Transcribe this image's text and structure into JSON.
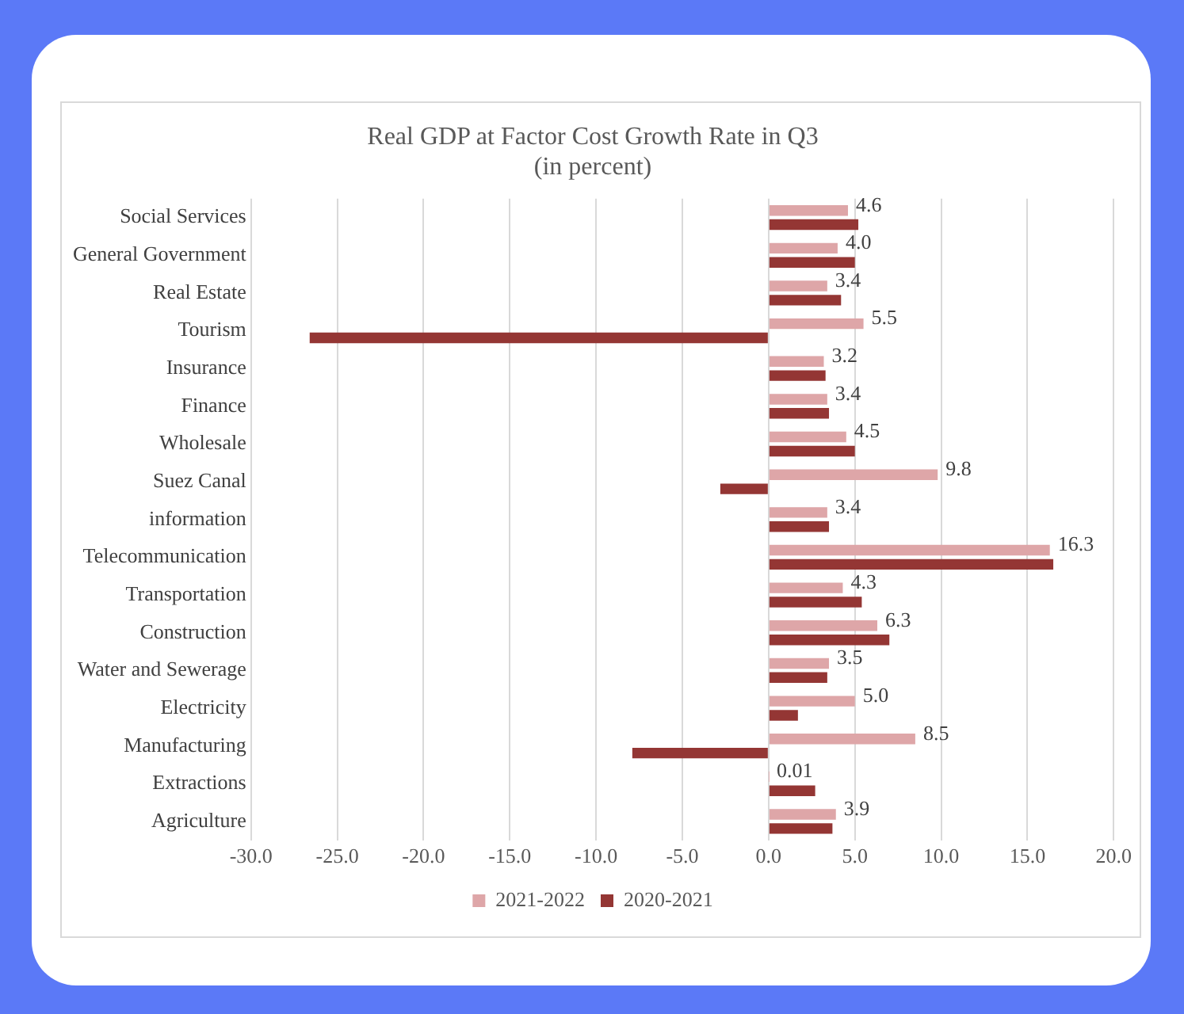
{
  "chart_data": {
    "type": "bar",
    "orientation": "horizontal",
    "title": "Real GDP at Factor Cost Growth Rate in Q3",
    "subtitle": "(in percent)",
    "categories": [
      "Social Services",
      "General Government",
      "Real Estate",
      "Tourism",
      "Insurance",
      "Finance",
      "Wholesale",
      "Suez Canal",
      "information",
      "Telecommunication",
      "Transportation",
      "Construction",
      "Water and Sewerage",
      "Electricity",
      "Manufacturing",
      "Extractions",
      "Agriculture"
    ],
    "series": [
      {
        "name": "2021-2022",
        "color": "#dea6a8",
        "values": [
          4.6,
          4.0,
          3.4,
          5.5,
          3.2,
          3.4,
          4.5,
          9.8,
          3.4,
          16.3,
          4.3,
          6.3,
          3.5,
          5.0,
          8.5,
          0.01,
          3.9
        ],
        "value_labels": [
          "4.6",
          "4.0",
          "3.4",
          "5.5",
          "3.2",
          "3.4",
          "4.5",
          "9.8",
          "3.4",
          "16.3",
          "4.3",
          "6.3",
          "3.5",
          "5.0",
          "8.5",
          "0.01",
          "3.9"
        ]
      },
      {
        "name": "2020-2021",
        "color": "#943634",
        "values": [
          5.2,
          5.0,
          4.2,
          -26.6,
          3.3,
          3.5,
          5.0,
          -2.8,
          3.5,
          16.5,
          5.4,
          7.0,
          3.4,
          1.7,
          -7.9,
          2.7,
          3.7
        ]
      }
    ],
    "xlim": [
      -30,
      20
    ],
    "xticks": [
      {
        "value": -30,
        "label": "-30.0"
      },
      {
        "value": -25,
        "label": "-25.0"
      },
      {
        "value": -20,
        "label": "-20.0"
      },
      {
        "value": -15,
        "label": "-15.0"
      },
      {
        "value": -10,
        "label": "-10.0"
      },
      {
        "value": -5,
        "label": "-5.0"
      },
      {
        "value": 0,
        "label": "0.0"
      },
      {
        "value": 5,
        "label": "5.0"
      },
      {
        "value": 10,
        "label": "10.0"
      },
      {
        "value": 15,
        "label": "15.0"
      },
      {
        "value": 20,
        "label": "20.0"
      }
    ],
    "grid": "x",
    "legend": "bottom"
  }
}
